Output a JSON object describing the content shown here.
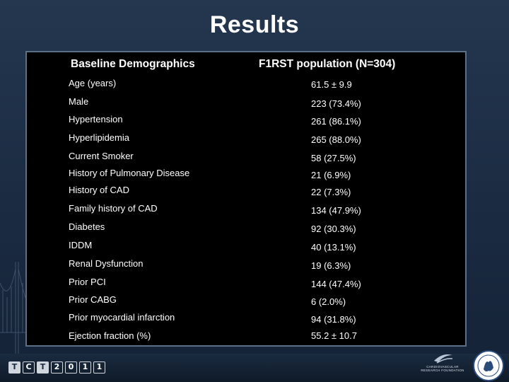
{
  "slide": {
    "title": "Results"
  },
  "table": {
    "header_left": "Baseline Demographics",
    "header_right": "F1RST population (N=304)",
    "rows": [
      {
        "label": "Age (years)",
        "value": "61.5 ± 9.9"
      },
      {
        "label": "Male",
        "value": "223 (73.4%)"
      },
      {
        "label": "Hypertension",
        "value": "261 (86.1%)"
      },
      {
        "label": "Hyperlipidemia",
        "value": "265 (88.0%)"
      },
      {
        "label": "Current Smoker",
        "value": "58 (27.5%)"
      },
      {
        "label": "History of Pulmonary Disease",
        "value": "21 (6.9%)"
      },
      {
        "label": "History of CAD",
        "value": "22 (7.3%)"
      },
      {
        "label": "Family history of CAD",
        "value": "134 (47.9%)"
      },
      {
        "label": "Diabetes",
        "value": "92 (30.3%)"
      },
      {
        "label": "IDDM",
        "value": "40 (13.1%)"
      },
      {
        "label": "Renal Dysfunction",
        "value": "19 (6.3%)"
      },
      {
        "label": "Prior PCI",
        "value": "144 (47.4%)"
      },
      {
        "label": "Prior CABG",
        "value": "6 (2.0%)"
      },
      {
        "label": "Prior myocardial infarction",
        "value": "94 (31.8%)"
      },
      {
        "label": "Ejection fraction (%)",
        "value": "55.2 ± 10.7"
      }
    ]
  },
  "footer": {
    "tct_logo_chars": [
      "T",
      "C",
      "T",
      "2",
      "0",
      "1",
      "1"
    ],
    "crf_text_line1": "CARDIOVASCULAR",
    "crf_text_line2": "RESEARCH FOUNDATION"
  },
  "colors": {
    "background": "#1c2d44",
    "panel": "#000000",
    "panel_border": "#5b6f86",
    "text": "#ffffff"
  },
  "icons": [
    "bridge-graphic",
    "tct-2011-logo",
    "crf-logo",
    "foundation-seal"
  ]
}
